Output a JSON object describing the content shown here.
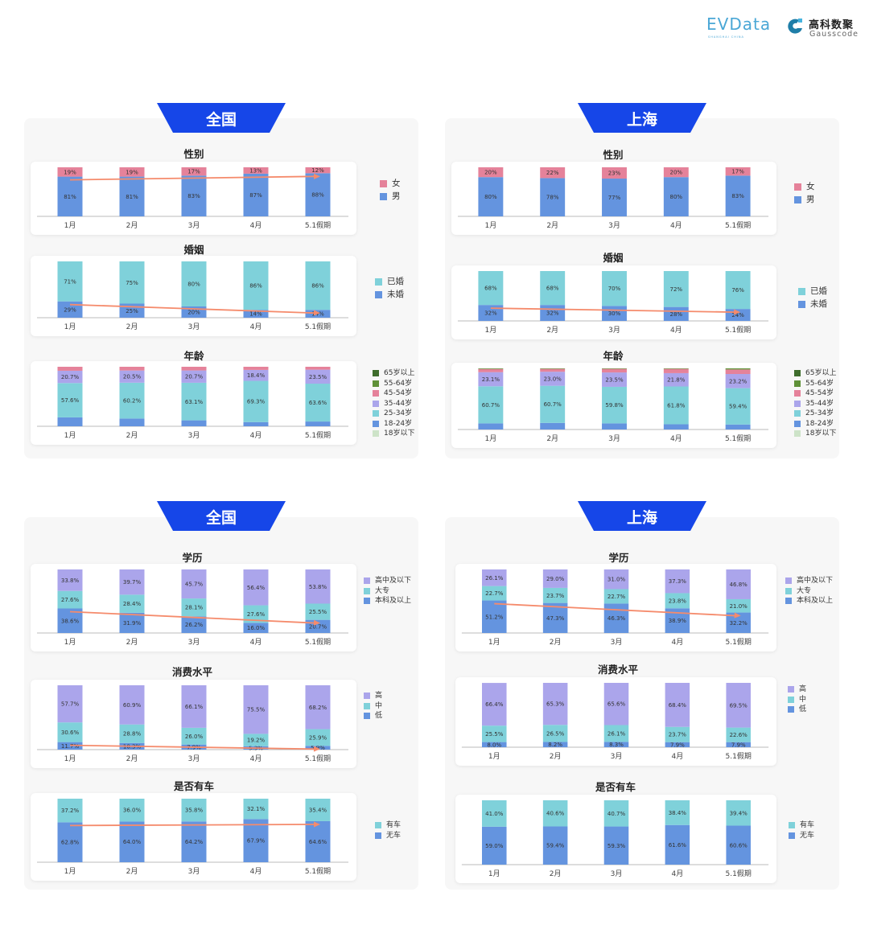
{
  "logo": {
    "evdata": "EVData",
    "evdata_sub": "SHANGHAI CHINA",
    "gauss_cn": "高科数聚",
    "gauss_en": "Gausscode"
  },
  "colors": {
    "blue": "#6494df",
    "cyan": "#7fd1da",
    "pink": "#e5829a",
    "purple": "#aba5eb",
    "dark_green": "#3f6d2c",
    "green": "#5f9138",
    "light_green": "#cde3c8",
    "arrow": "#f58b6c",
    "ribbon": "#1646e8"
  },
  "ribbons": [
    {
      "label": "全国"
    },
    {
      "label": "上海"
    },
    {
      "label": "全国"
    },
    {
      "label": "上海"
    }
  ],
  "chart_data": [
    {
      "id": "nat-gender",
      "type": "bar",
      "stacked": true,
      "title": "性别",
      "categories": [
        "1月",
        "2月",
        "3月",
        "4月",
        "5.1假期"
      ],
      "trend_arrow": true,
      "series": [
        {
          "name": "男",
          "color": "#6494df",
          "labeled": true,
          "values": [
            81,
            81,
            83,
            87,
            88
          ]
        },
        {
          "name": "女",
          "color": "#e5829a",
          "labeled": true,
          "values": [
            19,
            19,
            17,
            13,
            12
          ]
        }
      ],
      "unit": "%",
      "decimals": 0
    },
    {
      "id": "nat-marriage",
      "type": "bar",
      "stacked": true,
      "title": "婚姻",
      "categories": [
        "1月",
        "2月",
        "3月",
        "4月",
        "5.1假期"
      ],
      "trend_arrow": true,
      "series": [
        {
          "name": "未婚",
          "color": "#6494df",
          "labeled": true,
          "values": [
            29,
            25,
            20,
            14,
            14
          ]
        },
        {
          "name": "已婚",
          "color": "#7fd1da",
          "labeled": true,
          "values": [
            71,
            75,
            80,
            86,
            86
          ]
        }
      ],
      "unit": "%",
      "decimals": 0
    },
    {
      "id": "nat-age",
      "type": "bar",
      "stacked": true,
      "title": "年龄",
      "categories": [
        "1月",
        "2月",
        "3月",
        "4月",
        "5.1假期"
      ],
      "trend_arrow": false,
      "series": [
        {
          "name": "18岁以下",
          "color": "#cde3c8",
          "labeled": false,
          "values": [
            0,
            0,
            0,
            0,
            0
          ]
        },
        {
          "name": "18-24岁",
          "color": "#6494df",
          "labeled": false,
          "values": [
            15,
            13,
            10,
            7,
            8
          ]
        },
        {
          "name": "25-34岁",
          "color": "#7fd1da",
          "labeled": true,
          "values": [
            57.6,
            60.2,
            63.1,
            69.3,
            63.6
          ]
        },
        {
          "name": "35-44岁",
          "color": "#aba5eb",
          "labeled": true,
          "values": [
            20.7,
            20.5,
            20.7,
            18.4,
            23.5
          ]
        },
        {
          "name": "45-54岁",
          "color": "#e5829a",
          "labeled": false,
          "values": [
            6.7,
            6.3,
            6.2,
            5.3,
            4.9
          ]
        },
        {
          "name": "55-64岁",
          "color": "#5f9138",
          "labeled": false,
          "values": [
            0,
            0,
            0,
            0,
            0
          ]
        },
        {
          "name": "65岁以上",
          "color": "#3f6d2c",
          "labeled": false,
          "values": [
            0,
            0,
            0,
            0,
            0
          ]
        }
      ],
      "unit": "%",
      "decimals": 1
    },
    {
      "id": "sh-gender",
      "type": "bar",
      "stacked": true,
      "title": "性别",
      "categories": [
        "1月",
        "2月",
        "3月",
        "4月",
        "5.1假期"
      ],
      "trend_arrow": false,
      "series": [
        {
          "name": "男",
          "color": "#6494df",
          "labeled": true,
          "values": [
            80,
            78,
            77,
            80,
            83
          ]
        },
        {
          "name": "女",
          "color": "#e5829a",
          "labeled": true,
          "values": [
            20,
            22,
            23,
            20,
            17
          ]
        }
      ],
      "unit": "%",
      "decimals": 0
    },
    {
      "id": "sh-marriage",
      "type": "bar",
      "stacked": true,
      "title": "婚姻",
      "categories": [
        "1月",
        "2月",
        "3月",
        "4月",
        "5.1假期"
      ],
      "trend_arrow": true,
      "series": [
        {
          "name": "未婚",
          "color": "#6494df",
          "labeled": true,
          "values": [
            32,
            32,
            30,
            28,
            24
          ]
        },
        {
          "name": "已婚",
          "color": "#7fd1da",
          "labeled": true,
          "values": [
            68,
            68,
            70,
            72,
            76
          ]
        }
      ],
      "unit": "%",
      "decimals": 0
    },
    {
      "id": "sh-age",
      "type": "bar",
      "stacked": true,
      "title": "年龄",
      "categories": [
        "1月",
        "2月",
        "3月",
        "4月",
        "5.1假期"
      ],
      "trend_arrow": false,
      "series": [
        {
          "name": "18岁以下",
          "color": "#cde3c8",
          "labeled": false,
          "values": [
            0,
            0,
            0,
            0,
            0
          ]
        },
        {
          "name": "18-24岁",
          "color": "#6494df",
          "labeled": false,
          "values": [
            10,
            10.8,
            10,
            8.6,
            8.2
          ]
        },
        {
          "name": "25-34岁",
          "color": "#7fd1da",
          "labeled": true,
          "values": [
            60.7,
            60.7,
            59.8,
            61.8,
            59.4
          ]
        },
        {
          "name": "35-44岁",
          "color": "#aba5eb",
          "labeled": true,
          "values": [
            23.1,
            23.0,
            23.5,
            21.8,
            23.2
          ]
        },
        {
          "name": "45-54岁",
          "color": "#e5829a",
          "labeled": false,
          "values": [
            5.2,
            4.7,
            5.9,
            7,
            7.4
          ]
        },
        {
          "name": "55-64岁",
          "color": "#5f9138",
          "labeled": false,
          "values": [
            1,
            0.8,
            0.8,
            0.8,
            1.8
          ]
        },
        {
          "name": "65岁以上",
          "color": "#3f6d2c",
          "labeled": false,
          "values": [
            0,
            0,
            0,
            0,
            0
          ]
        }
      ],
      "unit": "%",
      "decimals": 1
    },
    {
      "id": "nat-edu",
      "type": "bar",
      "stacked": true,
      "title": "学历",
      "categories": [
        "1月",
        "2月",
        "3月",
        "4月",
        "5.1假期"
      ],
      "trend_arrow": true,
      "series": [
        {
          "name": "本科及以上",
          "color": "#6494df",
          "labeled": true,
          "values": [
            38.6,
            31.9,
            26.2,
            16.0,
            20.7
          ]
        },
        {
          "name": "大专",
          "color": "#7fd1da",
          "labeled": true,
          "values": [
            27.6,
            28.4,
            28.1,
            27.6,
            25.5
          ]
        },
        {
          "name": "高中及以下",
          "color": "#aba5eb",
          "labeled": true,
          "values": [
            33.8,
            39.7,
            45.7,
            56.4,
            53.8
          ]
        }
      ],
      "unit": "%",
      "decimals": 1
    },
    {
      "id": "nat-consume",
      "type": "bar",
      "stacked": true,
      "title": "消费水平",
      "categories": [
        "1月",
        "2月",
        "3月",
        "4月",
        "5.1假期"
      ],
      "trend_arrow": true,
      "series": [
        {
          "name": "低",
          "color": "#6494df",
          "labeled": true,
          "values": [
            11.7,
            10.3,
            7.9,
            5.3,
            5.9
          ]
        },
        {
          "name": "中",
          "color": "#7fd1da",
          "labeled": true,
          "values": [
            30.6,
            28.8,
            26.0,
            19.2,
            25.9
          ]
        },
        {
          "name": "高",
          "color": "#aba5eb",
          "labeled": true,
          "values": [
            57.7,
            60.9,
            66.1,
            75.5,
            68.2
          ]
        }
      ],
      "unit": "%",
      "decimals": 1
    },
    {
      "id": "nat-car",
      "type": "bar",
      "stacked": true,
      "title": "是否有车",
      "categories": [
        "1月",
        "2月",
        "3月",
        "4月",
        "5.1假期"
      ],
      "trend_arrow": true,
      "series": [
        {
          "name": "无车",
          "color": "#6494df",
          "labeled": true,
          "values": [
            62.8,
            64.0,
            64.2,
            67.9,
            64.6
          ]
        },
        {
          "name": "有车",
          "color": "#7fd1da",
          "labeled": true,
          "values": [
            37.2,
            36.0,
            35.8,
            32.1,
            35.4
          ]
        }
      ],
      "unit": "%",
      "decimals": 1
    },
    {
      "id": "sh-edu",
      "type": "bar",
      "stacked": true,
      "title": "学历",
      "categories": [
        "1月",
        "2月",
        "3月",
        "4月",
        "5.1假期"
      ],
      "trend_arrow": true,
      "series": [
        {
          "name": "本科及以上",
          "color": "#6494df",
          "labeled": true,
          "values": [
            51.2,
            47.3,
            46.3,
            38.9,
            32.2
          ]
        },
        {
          "name": "大专",
          "color": "#7fd1da",
          "labeled": true,
          "values": [
            22.7,
            23.7,
            22.7,
            23.8,
            21.0
          ]
        },
        {
          "name": "高中及以下",
          "color": "#aba5eb",
          "labeled": true,
          "values": [
            26.1,
            29.0,
            31.0,
            37.3,
            46.8
          ]
        }
      ],
      "unit": "%",
      "decimals": 1
    },
    {
      "id": "sh-consume",
      "type": "bar",
      "stacked": true,
      "title": "消费水平",
      "categories": [
        "1月",
        "2月",
        "3月",
        "4月",
        "5.1假期"
      ],
      "trend_arrow": false,
      "series": [
        {
          "name": "低",
          "color": "#6494df",
          "labeled": true,
          "values": [
            8.0,
            8.2,
            8.3,
            7.9,
            7.9
          ]
        },
        {
          "name": "中",
          "color": "#7fd1da",
          "labeled": true,
          "values": [
            25.5,
            26.5,
            26.1,
            23.7,
            22.6
          ]
        },
        {
          "name": "高",
          "color": "#aba5eb",
          "labeled": true,
          "values": [
            66.4,
            65.3,
            65.6,
            68.4,
            69.5
          ]
        }
      ],
      "unit": "%",
      "decimals": 1
    },
    {
      "id": "sh-car",
      "type": "bar",
      "stacked": true,
      "title": "是否有车",
      "categories": [
        "1月",
        "2月",
        "3月",
        "4月",
        "5.1假期"
      ],
      "trend_arrow": false,
      "series": [
        {
          "name": "无车",
          "color": "#6494df",
          "labeled": true,
          "values": [
            59.0,
            59.4,
            59.3,
            61.6,
            60.6
          ]
        },
        {
          "name": "有车",
          "color": "#7fd1da",
          "labeled": true,
          "values": [
            41.0,
            40.6,
            40.7,
            38.4,
            39.4
          ]
        }
      ],
      "unit": "%",
      "decimals": 1
    }
  ]
}
